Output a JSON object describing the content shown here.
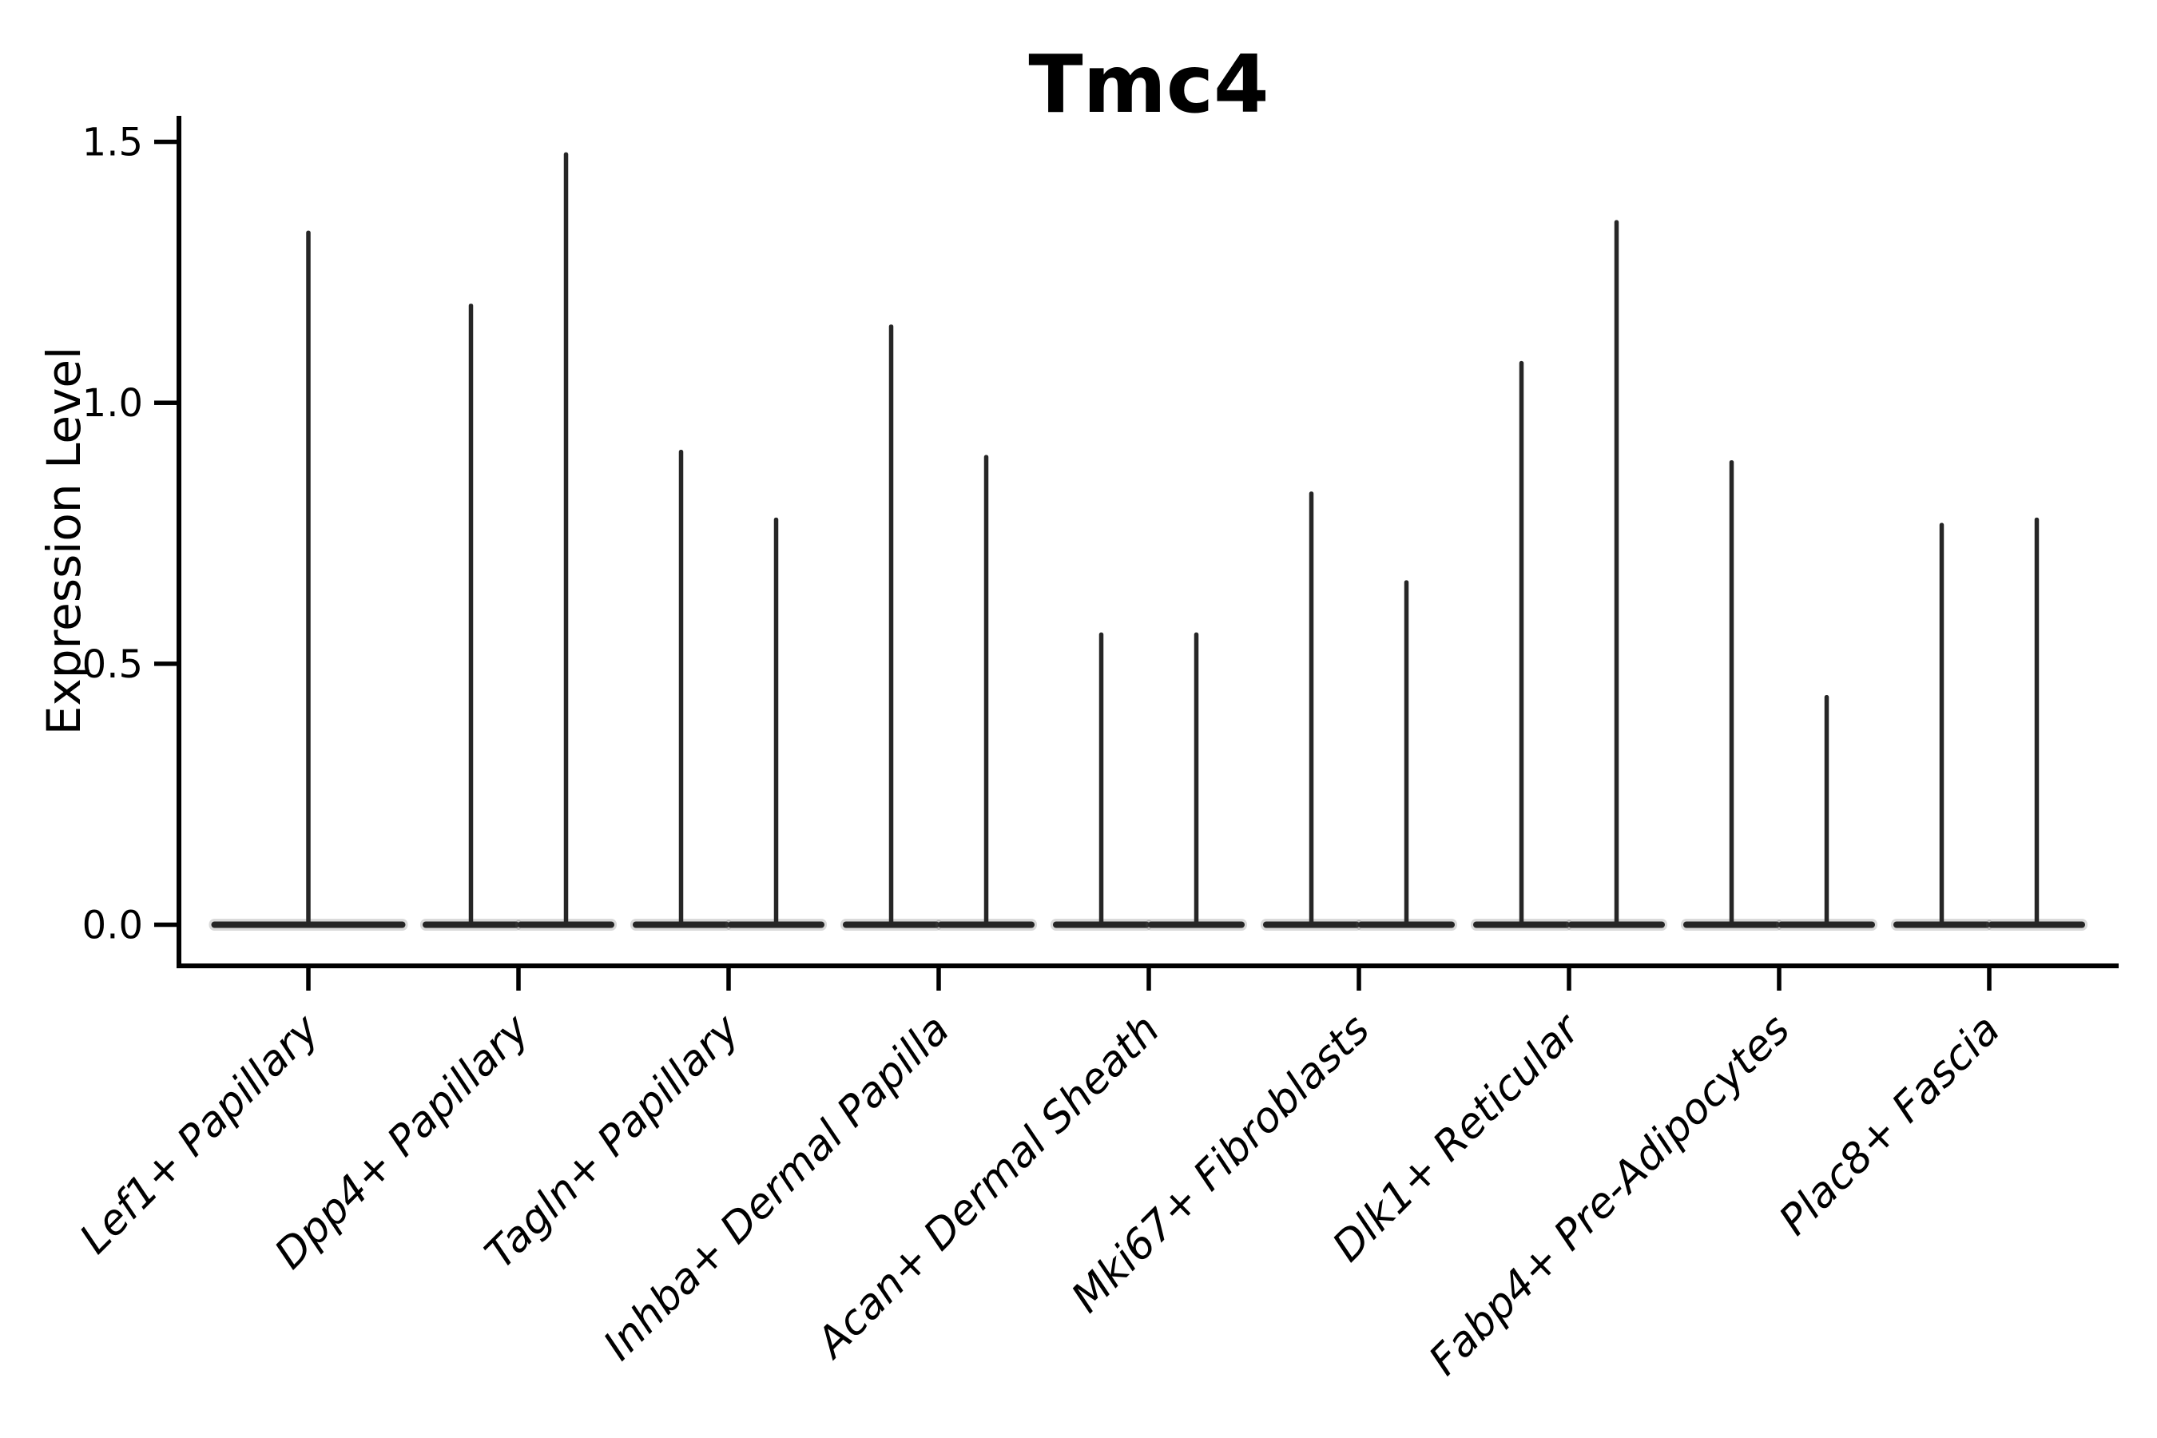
{
  "chart_data": {
    "type": "violin",
    "title": "Tmc4",
    "ylabel": "Expression Level",
    "xlabel": "",
    "categories": [
      "Lef1+ Papillary",
      "Dpp4+ Papillary",
      "Tagln+ Papillary",
      "Inhba+ Dermal Papilla",
      "Acan+ Dermal Sheath",
      "Mki67+ Fibroblasts",
      "Dlk1+ Reticular",
      "Fabp4+ Pre-Adipocytes",
      "Plac8+ Fascia"
    ],
    "violin_maxima": [
      [
        1.33
      ],
      [
        1.19,
        1.48
      ],
      [
        0.91,
        0.78
      ],
      [
        1.15,
        0.9
      ],
      [
        0.56,
        0.56
      ],
      [
        0.83,
        0.66
      ],
      [
        1.08,
        1.35
      ],
      [
        0.89,
        0.44
      ],
      [
        0.77,
        0.78
      ]
    ],
    "baseline_value": 0.0,
    "y_tick_labels": [
      "0.0",
      "0.5",
      "1.0",
      "1.5"
    ],
    "y_tick_values": [
      0.0,
      0.5,
      1.0,
      1.5
    ],
    "ylim": [
      -0.08,
      1.62
    ],
    "grid": false,
    "legend": "none",
    "x_tick_label_rotation_deg": 45,
    "x_tick_label_style": "italic",
    "violin_shape_note": "each violin is a flat near-zero-width body at 0 with a thin vertical tail up to its maximum; Lef1+ Papillary has one full-width violin, all other categories have two side-by-side violins",
    "colors": {
      "violin": "#262626",
      "axis": "#000000",
      "text": "#000000",
      "background": "#ffffff"
    }
  }
}
